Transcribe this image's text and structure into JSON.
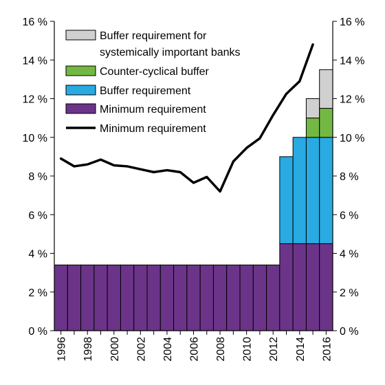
{
  "chart_data": {
    "type": "bar",
    "categories": [
      "1996",
      "1997",
      "1998",
      "1999",
      "2000",
      "2001",
      "2002",
      "2003",
      "2004",
      "2005",
      "2006",
      "2007",
      "2008",
      "2009",
      "2010",
      "2011",
      "2012",
      "2013",
      "2014",
      "2015",
      "2016"
    ],
    "x_tick_labels": [
      "1996",
      "1998",
      "2000",
      "2002",
      "2004",
      "2006",
      "2008",
      "2010",
      "2012",
      "2014",
      "2016"
    ],
    "ylim": [
      0,
      16
    ],
    "y_ticks": [
      0,
      2,
      4,
      6,
      8,
      10,
      12,
      14,
      16
    ],
    "y_tick_labels": [
      "0 %",
      "2 %",
      "4 %",
      "6 %",
      "8 %",
      "10 %",
      "12 %",
      "14 %",
      "16 %"
    ],
    "series": [
      {
        "name": "Minimum requirement",
        "kind": "bar",
        "color": "#6b3489",
        "values": [
          3.4,
          3.4,
          3.4,
          3.4,
          3.4,
          3.4,
          3.4,
          3.4,
          3.4,
          3.4,
          3.4,
          3.4,
          3.4,
          3.4,
          3.4,
          3.4,
          3.4,
          4.5,
          4.5,
          4.5,
          4.5
        ]
      },
      {
        "name": "Buffer requirement",
        "kind": "bar",
        "color": "#29aae2",
        "values": [
          0,
          0,
          0,
          0,
          0,
          0,
          0,
          0,
          0,
          0,
          0,
          0,
          0,
          0,
          0,
          0,
          0,
          4.5,
          5.5,
          5.5,
          5.5
        ]
      },
      {
        "name": "Counter-cyclical buffer",
        "kind": "bar",
        "color": "#73b843",
        "values": [
          0,
          0,
          0,
          0,
          0,
          0,
          0,
          0,
          0,
          0,
          0,
          0,
          0,
          0,
          0,
          0,
          0,
          0,
          0,
          1.0,
          1.5
        ]
      },
      {
        "name": "Buffer requirement for systemically important banks",
        "kind": "bar",
        "color": "#d0d0d0",
        "values": [
          0,
          0,
          0,
          0,
          0,
          0,
          0,
          0,
          0,
          0,
          0,
          0,
          0,
          0,
          0,
          0,
          0,
          0,
          0,
          1.0,
          2.0
        ]
      },
      {
        "name": "Minimum requirement",
        "kind": "line",
        "color": "#000000",
        "x": [
          1996,
          1997,
          1998,
          1999,
          2000,
          2001,
          2002,
          2003,
          2004,
          2005,
          2006,
          2007,
          2008,
          2009,
          2010,
          2011,
          2012,
          2013,
          2014,
          2015
        ],
        "values": [
          8.9,
          8.5,
          8.6,
          8.85,
          8.55,
          8.5,
          8.35,
          8.2,
          8.3,
          8.2,
          7.65,
          7.95,
          7.2,
          8.75,
          9.45,
          9.95,
          11.15,
          12.25,
          12.9,
          14.8
        ]
      }
    ],
    "legend": {
      "position": "top-left",
      "entries": [
        {
          "lines": [
            "Buffer requirement for",
            "systemically important banks"
          ],
          "color": "#d0d0d0",
          "symbol": "box"
        },
        {
          "lines": [
            "Counter-cyclical buffer"
          ],
          "color": "#73b843",
          "symbol": "box"
        },
        {
          "lines": [
            "Buffer requirement"
          ],
          "color": "#29aae2",
          "symbol": "box"
        },
        {
          "lines": [
            "Minimum requirement"
          ],
          "color": "#6b3489",
          "symbol": "box"
        },
        {
          "lines": [
            "Minimum requirement"
          ],
          "color": "#000000",
          "symbol": "line"
        }
      ]
    },
    "grid": false
  }
}
